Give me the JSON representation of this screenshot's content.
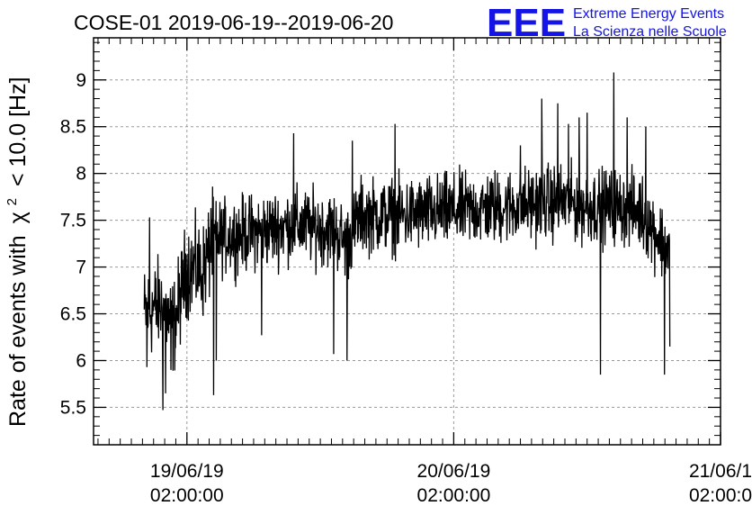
{
  "chart_data": {
    "type": "line",
    "title": "COSE-01 2019-06-19--2019-06-20",
    "ylabel_prefix": "Rate of events with",
    "ylabel_chi": "χ",
    "ylabel_sup": "2",
    "ylabel_suffix": "< 10.0 [Hz]",
    "xlim": [
      -0.35,
      2.0
    ],
    "ylim": [
      5.1,
      9.45
    ],
    "grid": true,
    "yticks": [
      {
        "value": 5.5,
        "label": "5.5"
      },
      {
        "value": 6,
        "label": "6"
      },
      {
        "value": 6.5,
        "label": "6.5"
      },
      {
        "value": 7,
        "label": "7"
      },
      {
        "value": 7.5,
        "label": "7.5"
      },
      {
        "value": 8,
        "label": "8"
      },
      {
        "value": 8.5,
        "label": "8.5"
      },
      {
        "value": 9,
        "label": "9"
      }
    ],
    "xticks": [
      {
        "value": 0,
        "line1": "19/06/19",
        "line2": "02:00:00"
      },
      {
        "value": 1,
        "line1": "20/06/19",
        "line2": "02:00:00"
      },
      {
        "value": 2,
        "line1": "21/06/1",
        "line2": "02:00:0"
      }
    ],
    "series": [
      {
        "color": "#000000",
        "x_start": -0.16,
        "x_end": 1.81,
        "trend_x": [
          -0.16,
          -0.1,
          -0.05,
          0.0,
          0.06,
          0.1,
          0.2,
          0.4,
          0.55,
          0.6,
          0.65,
          0.8,
          1.0,
          1.2,
          1.4,
          1.5,
          1.6,
          1.7,
          1.8
        ],
        "trend_y": [
          6.5,
          6.6,
          6.35,
          7.0,
          6.95,
          7.3,
          7.35,
          7.45,
          7.4,
          7.25,
          7.55,
          7.55,
          7.6,
          7.65,
          7.7,
          7.65,
          7.65,
          7.6,
          7.2
        ],
        "spikes": [
          {
            "x": -0.15,
            "y": 5.93
          },
          {
            "x": -0.14,
            "y": 7.53
          },
          {
            "x": -0.09,
            "y": 5.47
          },
          {
            "x": -0.08,
            "y": 5.65
          },
          {
            "x": -0.06,
            "y": 5.9
          },
          {
            "x": 0.1,
            "y": 5.63
          },
          {
            "x": 0.09,
            "y": 7.63
          },
          {
            "x": 0.11,
            "y": 6.0
          },
          {
            "x": 0.28,
            "y": 6.27
          },
          {
            "x": 0.4,
            "y": 8.43
          },
          {
            "x": 0.55,
            "y": 6.07
          },
          {
            "x": 0.6,
            "y": 6.0
          },
          {
            "x": 0.62,
            "y": 8.35
          },
          {
            "x": 0.78,
            "y": 8.53
          },
          {
            "x": 1.25,
            "y": 8.3
          },
          {
            "x": 1.33,
            "y": 8.8
          },
          {
            "x": 1.39,
            "y": 8.75
          },
          {
            "x": 1.43,
            "y": 8.53
          },
          {
            "x": 1.47,
            "y": 8.6
          },
          {
            "x": 1.5,
            "y": 8.65
          },
          {
            "x": 1.54,
            "y": 7.77
          },
          {
            "x": 1.55,
            "y": 5.85
          },
          {
            "x": 1.6,
            "y": 9.08
          },
          {
            "x": 1.65,
            "y": 8.6
          },
          {
            "x": 1.72,
            "y": 8.5
          },
          {
            "x": 1.79,
            "y": 5.85
          },
          {
            "x": 1.81,
            "y": 6.15
          }
        ]
      }
    ]
  },
  "logo": {
    "mark": "EEE",
    "line1": "Extreme Energy Events",
    "line2": "La Scienza nelle Scuole",
    "color": "#1414e6"
  }
}
